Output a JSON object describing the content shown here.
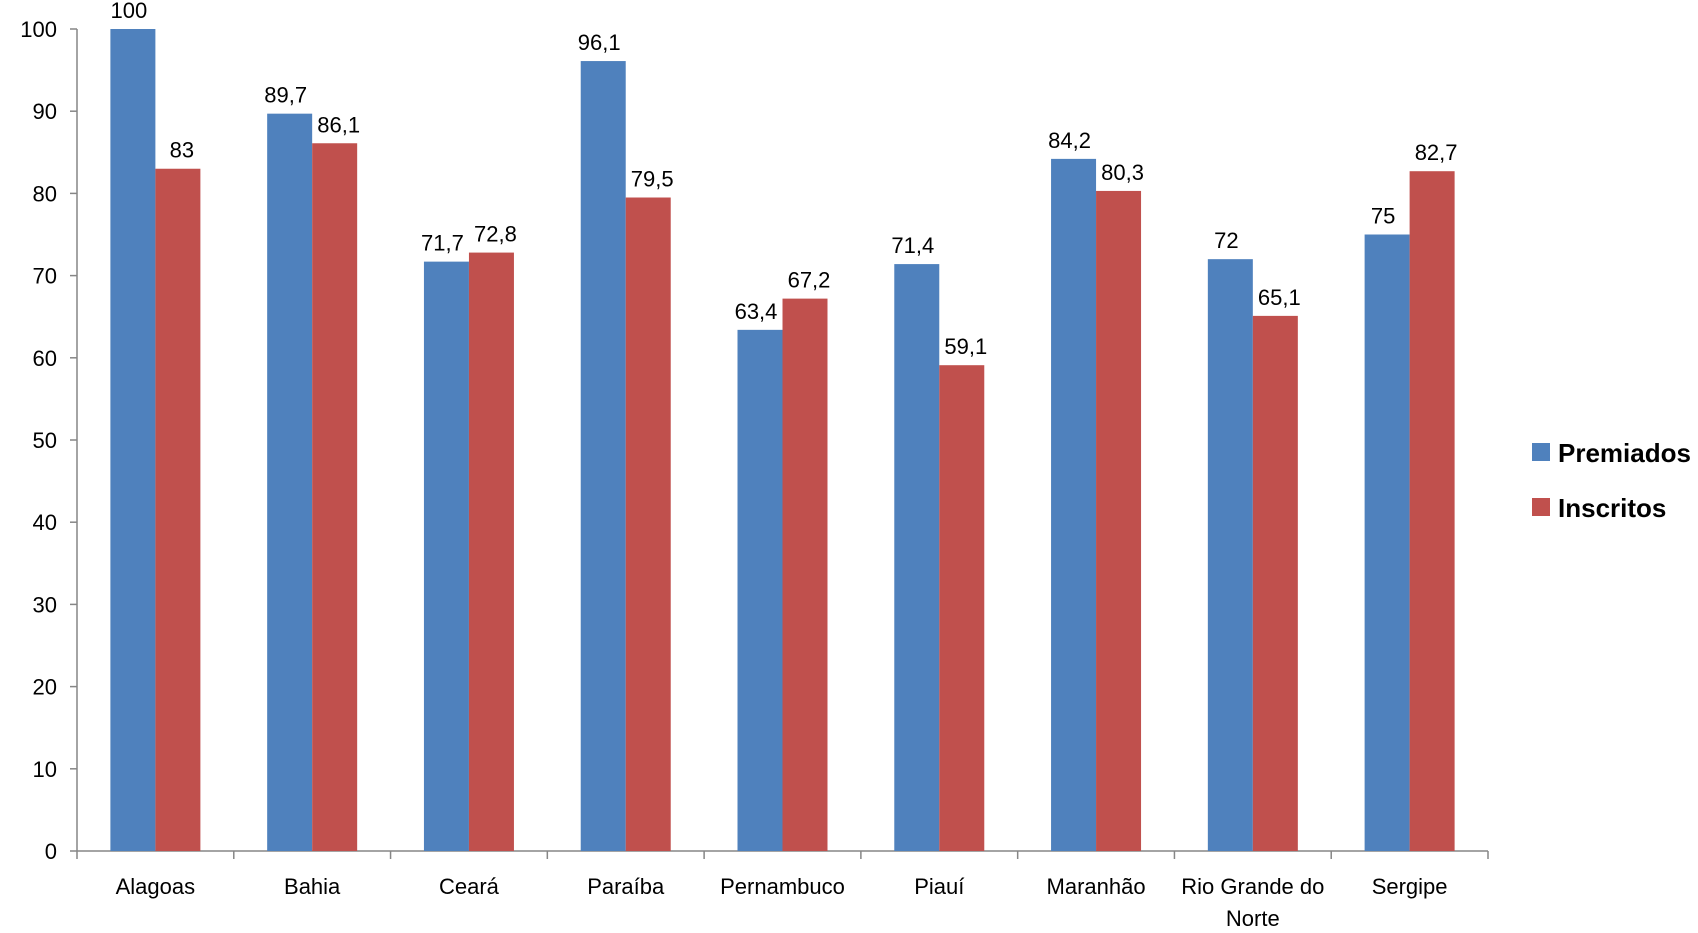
{
  "chart_data": {
    "type": "bar",
    "title": "",
    "xlabel": "",
    "ylabel": "",
    "ylim": [
      0,
      100
    ],
    "yticks": [
      0,
      10,
      20,
      30,
      40,
      50,
      60,
      70,
      80,
      90,
      100
    ],
    "grid": false,
    "legend_position": "right",
    "categories": [
      [
        "Alagoas"
      ],
      [
        "Bahia"
      ],
      [
        "Ceará"
      ],
      [
        "Paraíba"
      ],
      [
        "Pernambuco"
      ],
      [
        "Piauí"
      ],
      [
        "Maranhão"
      ],
      [
        "Rio Grande do",
        "Norte"
      ],
      [
        "Sergipe"
      ]
    ],
    "series": [
      {
        "name": "Premiados",
        "color": "#4F81BD",
        "values": [
          100,
          89.7,
          71.7,
          96.1,
          63.4,
          71.4,
          84.2,
          72,
          75
        ],
        "labels": [
          "100",
          "89,7",
          "71,7",
          "96,1",
          "63,4",
          "71,4",
          "84,2",
          "72",
          "75"
        ]
      },
      {
        "name": "Inscritos",
        "color": "#C0504D",
        "values": [
          83,
          86.1,
          72.8,
          79.5,
          67.2,
          59.1,
          80.3,
          65.1,
          82.7
        ],
        "labels": [
          "83",
          "86,1",
          "72,8",
          "79,5",
          "67,2",
          "59,1",
          "80,3",
          "65,1",
          "82,7"
        ]
      }
    ]
  }
}
